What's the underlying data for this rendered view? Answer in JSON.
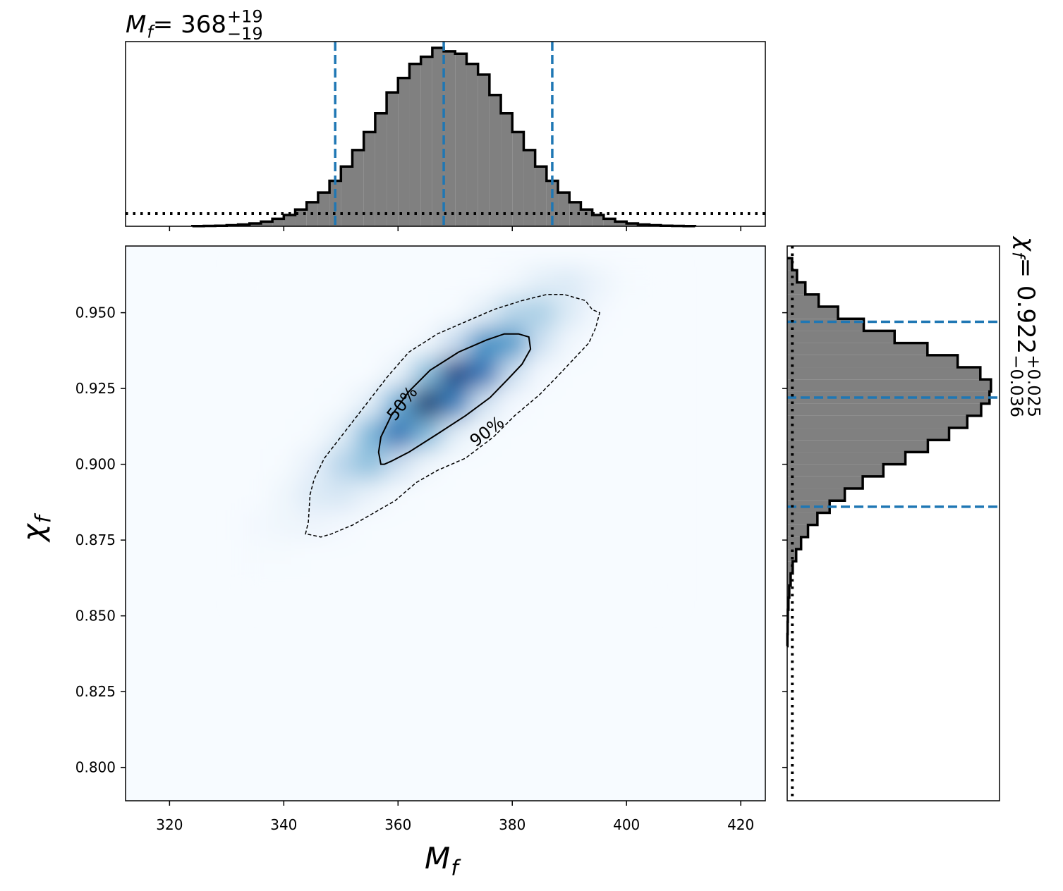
{
  "chart_data": [
    {
      "type": "histogram",
      "orientation": "vertical",
      "title": {
        "symbol": "M",
        "subscript": "f",
        "median": " = 368",
        "plus": "+19",
        "minus": "−19"
      },
      "bins": [
        324,
        326,
        328,
        330,
        332,
        334,
        336,
        338,
        340,
        342,
        344,
        346,
        348,
        350,
        352,
        354,
        356,
        358,
        360,
        362,
        364,
        366,
        368,
        370,
        372,
        374,
        376,
        378,
        380,
        382,
        384,
        386,
        388,
        390,
        392,
        394,
        396,
        398,
        400,
        402,
        404,
        406,
        408,
        410,
        412
      ],
      "values": [
        0.001,
        0.002,
        0.003,
        0.006,
        0.01,
        0.016,
        0.026,
        0.042,
        0.063,
        0.094,
        0.135,
        0.189,
        0.255,
        0.335,
        0.427,
        0.528,
        0.633,
        0.75,
        0.831,
        0.91,
        0.95,
        1.0,
        0.98,
        0.967,
        0.91,
        0.85,
        0.736,
        0.633,
        0.528,
        0.427,
        0.335,
        0.255,
        0.189,
        0.135,
        0.094,
        0.063,
        0.042,
        0.026,
        0.016,
        0.01,
        0.006,
        0.003,
        0.002,
        0.001
      ],
      "color": "#808080",
      "edgecolor": "#000000",
      "quantiles": [
        349,
        368,
        387
      ],
      "quantile_color": "#1f77b4",
      "prior": 0.071,
      "xlim": [
        312.3,
        424.3
      ],
      "xticks": [
        320,
        340,
        360,
        380,
        400,
        420
      ],
      "ylim": [
        0,
        1.035
      ]
    },
    {
      "type": "heatmap",
      "xlabel": {
        "symbol": "M",
        "subscript": "f"
      },
      "ylabel": {
        "symbol": "χ",
        "subscript": "f"
      },
      "colormap": [
        "#f7fbff",
        "#deebf7",
        "#c6dbef",
        "#9ecae1",
        "#6baed6",
        "#4292c6",
        "#2171b5",
        "#08519c",
        "#08306b"
      ],
      "x": [
        335,
        340,
        345,
        350,
        355,
        360,
        365,
        370,
        375,
        380,
        385,
        390,
        395,
        400,
        405
      ],
      "y": [
        0.96,
        0.95,
        0.94,
        0.93,
        0.92,
        0.91,
        0.9,
        0.89,
        0.88,
        0.87,
        0.86
      ],
      "z": [
        [
          0,
          0,
          0,
          0,
          0,
          0,
          0,
          0,
          0,
          0.03,
          0.1,
          0.13,
          0.06,
          0.01,
          0
        ],
        [
          0,
          0,
          0,
          0,
          0,
          0,
          0,
          0.01,
          0.1,
          0.3,
          0.33,
          0.13,
          0.02,
          0,
          0
        ],
        [
          0,
          0,
          0,
          0,
          0,
          0,
          0.03,
          0.24,
          0.61,
          0.58,
          0.2,
          0.03,
          0,
          0,
          0
        ],
        [
          0,
          0,
          0,
          0,
          0,
          0.07,
          0.42,
          0.91,
          0.73,
          0.22,
          0.02,
          0,
          0,
          0,
          0
        ],
        [
          0,
          0,
          0,
          0.01,
          0.1,
          0.5,
          0.97,
          0.68,
          0.18,
          0.02,
          0,
          0,
          0,
          0,
          0
        ],
        [
          0,
          0,
          0.01,
          0.1,
          0.45,
          0.74,
          0.44,
          0.1,
          0.01,
          0,
          0,
          0,
          0,
          0,
          0
        ],
        [
          0,
          0.01,
          0.08,
          0.29,
          0.41,
          0.21,
          0.04,
          0,
          0,
          0,
          0,
          0,
          0,
          0,
          0
        ],
        [
          0,
          0.04,
          0.13,
          0.16,
          0.07,
          0.01,
          0,
          0,
          0,
          0,
          0,
          0,
          0,
          0,
          0
        ],
        [
          0.02,
          0.04,
          0.05,
          0.02,
          0,
          0,
          0,
          0,
          0,
          0,
          0,
          0,
          0,
          0,
          0
        ],
        [
          0.01,
          0.01,
          0,
          0,
          0,
          0,
          0,
          0,
          0,
          0,
          0,
          0,
          0,
          0,
          0
        ],
        [
          0,
          0,
          0,
          0,
          0,
          0,
          0,
          0,
          0,
          0,
          0,
          0,
          0,
          0,
          0
        ]
      ],
      "contours": [
        {
          "label": "50%",
          "style": "solid",
          "x": [
            357.0,
            356.6,
            357.0,
            358.8,
            361.9,
            365.6,
            370.6,
            375.5,
            378.6,
            381.1,
            382.9,
            383.2,
            381.7,
            379.2,
            376.1,
            371.8,
            366.9,
            361.9,
            358.8,
            357.6
          ],
          "y": [
            0.9,
            0.904,
            0.909,
            0.916,
            0.924,
            0.931,
            0.937,
            0.941,
            0.943,
            0.943,
            0.942,
            0.938,
            0.933,
            0.928,
            0.922,
            0.916,
            0.91,
            0.904,
            0.901,
            0.9
          ]
        },
        {
          "label": "90%",
          "style": "dashed",
          "x": [
            343.8,
            344.3,
            344.6,
            345.3,
            347.1,
            350.8,
            354.5,
            358.2,
            361.9,
            366.9,
            371.8,
            376.7,
            381.7,
            386.0,
            389.1,
            392.8,
            394.0,
            395.3,
            394.6,
            393.4,
            390.9,
            387.9,
            384.8,
            380.4,
            376.7,
            371.8,
            366.9,
            363.2,
            359.5,
            355.8,
            352.1,
            348.3,
            346.5,
            344.0
          ],
          "y": [
            0.877,
            0.881,
            0.89,
            0.895,
            0.902,
            0.911,
            0.92,
            0.929,
            0.937,
            0.943,
            0.947,
            0.951,
            0.954,
            0.956,
            0.956,
            0.954,
            0.951,
            0.95,
            0.945,
            0.94,
            0.935,
            0.929,
            0.923,
            0.916,
            0.909,
            0.902,
            0.898,
            0.894,
            0.888,
            0.884,
            0.88,
            0.877,
            0.876,
            0.877
          ]
        }
      ],
      "xlim": [
        312.3,
        424.3
      ],
      "xticks": [
        320,
        340,
        360,
        380,
        400,
        420
      ],
      "ylim": [
        0.789,
        0.972
      ],
      "yticks": [
        {
          "value": 0.8,
          "label": "0.800"
        },
        0.825,
        {
          "value": 0.85,
          "label": "0.850"
        },
        0.875,
        {
          "value": 0.9,
          "label": "0.900"
        },
        0.925,
        {
          "value": 0.95,
          "label": "0.950"
        }
      ]
    },
    {
      "type": "histogram",
      "orientation": "horizontal",
      "title": {
        "symbol": "χ",
        "subscript": "f",
        "median": " = 0.922",
        "plus": "+0.025",
        "minus": "−0.036"
      },
      "bins": [
        0.84,
        0.844,
        0.848,
        0.852,
        0.856,
        0.86,
        0.864,
        0.868,
        0.872,
        0.876,
        0.88,
        0.884,
        0.888,
        0.892,
        0.896,
        0.9,
        0.904,
        0.908,
        0.912,
        0.916,
        0.92,
        0.924,
        0.928,
        0.932,
        0.936,
        0.94,
        0.944,
        0.948,
        0.952,
        0.956,
        0.96,
        0.964,
        0.968
      ],
      "values": [
        0.001,
        0.002,
        0.003,
        0.006,
        0.01,
        0.017,
        0.027,
        0.044,
        0.068,
        0.102,
        0.148,
        0.208,
        0.282,
        0.37,
        0.471,
        0.579,
        0.689,
        0.793,
        0.882,
        0.95,
        0.991,
        0.998,
        0.946,
        0.835,
        0.687,
        0.526,
        0.375,
        0.249,
        0.154,
        0.089,
        0.048,
        0.024
      ],
      "color": "#808080",
      "edgecolor": "#000000",
      "quantiles": [
        0.886,
        0.922,
        0.947
      ],
      "quantile_color": "#1f77b4",
      "prior": 0.025,
      "ylim": [
        0.789,
        0.972
      ],
      "yticks": [
        0.8,
        0.825,
        0.85,
        0.875,
        0.9,
        0.925,
        0.95
      ],
      "xlim": [
        0,
        1.04
      ]
    }
  ]
}
